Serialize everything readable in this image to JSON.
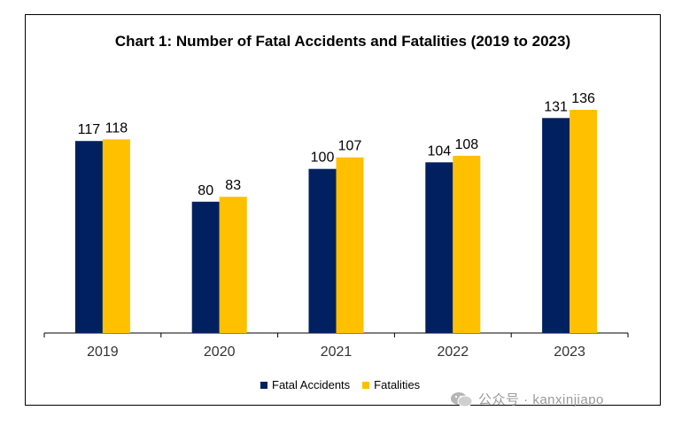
{
  "chart_data": {
    "type": "bar",
    "title": "Chart 1: Number of Fatal Accidents and Fatalities (2019 to 2023)",
    "categories": [
      "2019",
      "2020",
      "2021",
      "2022",
      "2023"
    ],
    "series": [
      {
        "name": "Fatal Accidents",
        "values": [
          117,
          80,
          100,
          104,
          131
        ],
        "color": "#002060"
      },
      {
        "name": "Fatalities",
        "values": [
          118,
          83,
          107,
          108,
          136
        ],
        "color": "#FFC000"
      }
    ],
    "ylim": [
      0,
      160
    ],
    "grid": false,
    "legend_position": "bottom"
  },
  "watermark": {
    "text": "公众号 · kanxinjiapo",
    "icon": "wechat-icon"
  }
}
